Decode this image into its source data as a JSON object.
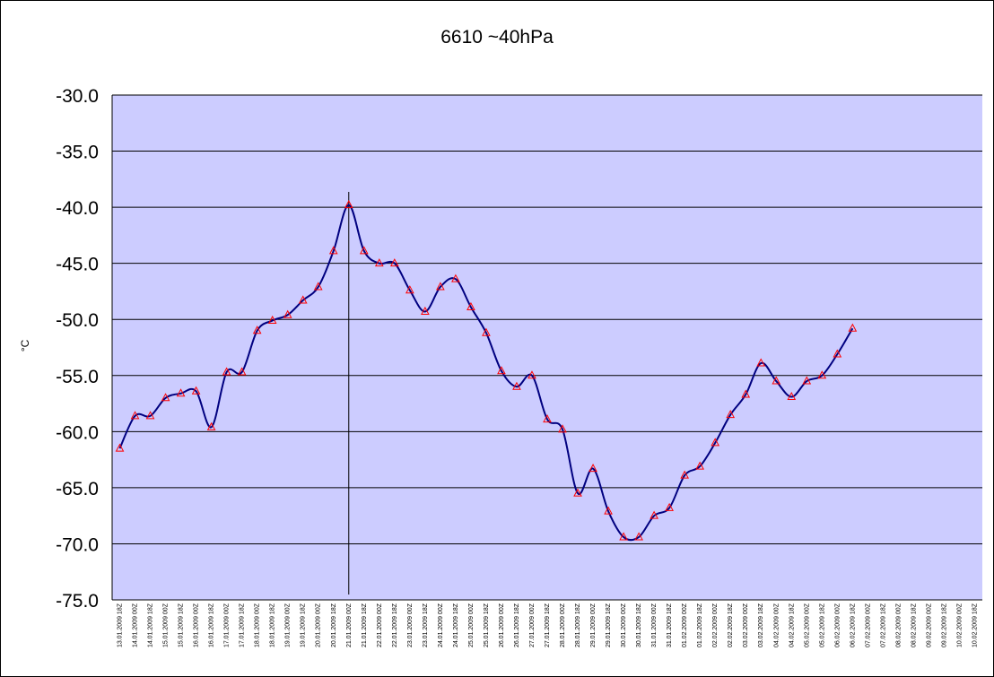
{
  "chart_data": {
    "type": "line",
    "title": "6610 ~40hPa",
    "ylabel": "°C",
    "xlabel": "",
    "ylim": [
      -75,
      -30
    ],
    "ystep": 5,
    "ytick_labels": [
      "-75.0",
      "-70.0",
      "-65.0",
      "-60.0",
      "-55.0",
      "-50.0",
      "-45.0",
      "-40.0",
      "-35.0",
      "-30.0"
    ],
    "grid": true,
    "legend": "none",
    "categories": [
      "13.01.2009 18Z",
      "14.01.2009 00Z",
      "14.01.2009 18Z",
      "15.01.2009 00Z",
      "15.01.2009 18Z",
      "16.01.2009 00Z",
      "16.01.2009 18Z",
      "17.01.2009 00Z",
      "17.01.2009 18Z",
      "18.01.2009 00Z",
      "18.01.2009 18Z",
      "19.01.2009 00Z",
      "19.01.2009 18Z",
      "20.01.2009 00Z",
      "20.01.2009 18Z",
      "21.01.2009 00Z",
      "21.01.2009 18Z",
      "22.01.2009 00Z",
      "22.01.2009 18Z",
      "23.01.2009 00Z",
      "23.01.2009 18Z",
      "24.01.2009 00Z",
      "24.01.2009 18Z",
      "25.01.2009 00Z",
      "25.01.2009 18Z",
      "26.01.2009 00Z",
      "26.01.2009 18Z",
      "27.01.2009 00Z",
      "27.01.2009 18Z",
      "28.01.2009 00Z",
      "28.01.2009 18Z",
      "29.01.2009 00Z",
      "29.01.2009 18Z",
      "30.01.2009 00Z",
      "30.01.2009 18Z",
      "31.01.2009 00Z",
      "31.01.2009 18Z",
      "01.02.2009 00Z",
      "01.02.2009 18Z",
      "02.02.2009 00Z",
      "02.02.2009 18Z",
      "03.02.2009 00Z",
      "03.02.2009 18Z",
      "04.02.2009 00Z",
      "04.02.2009 18Z",
      "05.02.2009 00Z",
      "05.02.2009 18Z",
      "06.02.2009 00Z",
      "06.02.2009 18Z",
      "07.02.2009 00Z",
      "07.02.2009 18Z",
      "08.02.2009 00Z",
      "08.02.2009 18Z",
      "09.02.2009 00Z",
      "09.02.2009 18Z",
      "10.02.2009 00Z",
      "10.02.2009 18Z"
    ],
    "series": [
      {
        "values": [
          -61.5,
          -58.6,
          -58.6,
          -57.0,
          -56.6,
          -56.4,
          -59.6,
          -54.7,
          -54.7,
          -51.0,
          -50.1,
          -49.6,
          -48.3,
          -47.1,
          -43.9,
          -39.8,
          -43.9,
          -45.0,
          -45.0,
          -47.4,
          -49.3,
          -47.1,
          -46.4,
          -48.9,
          -51.2,
          -54.6,
          -56.0,
          -55.0,
          -58.9,
          -59.8,
          -65.5,
          -63.3,
          -67.1,
          -69.4,
          -69.4,
          -67.5,
          -66.8,
          -63.9,
          -63.1,
          -61.0,
          -58.5,
          -56.7,
          -53.9,
          -55.5,
          -56.9,
          -55.5,
          -55.0,
          -53.1,
          -50.8,
          null,
          null,
          null,
          null,
          null,
          null,
          null,
          null
        ],
        "color": "#000080",
        "marker_color": "#ff0000"
      }
    ],
    "marker_line": {
      "category": "21.01.2009 00Z"
    }
  },
  "colors": {
    "plot_background": "#ccccff",
    "gridline": "#000000",
    "line": "#000080",
    "marker": "#ff0000"
  }
}
